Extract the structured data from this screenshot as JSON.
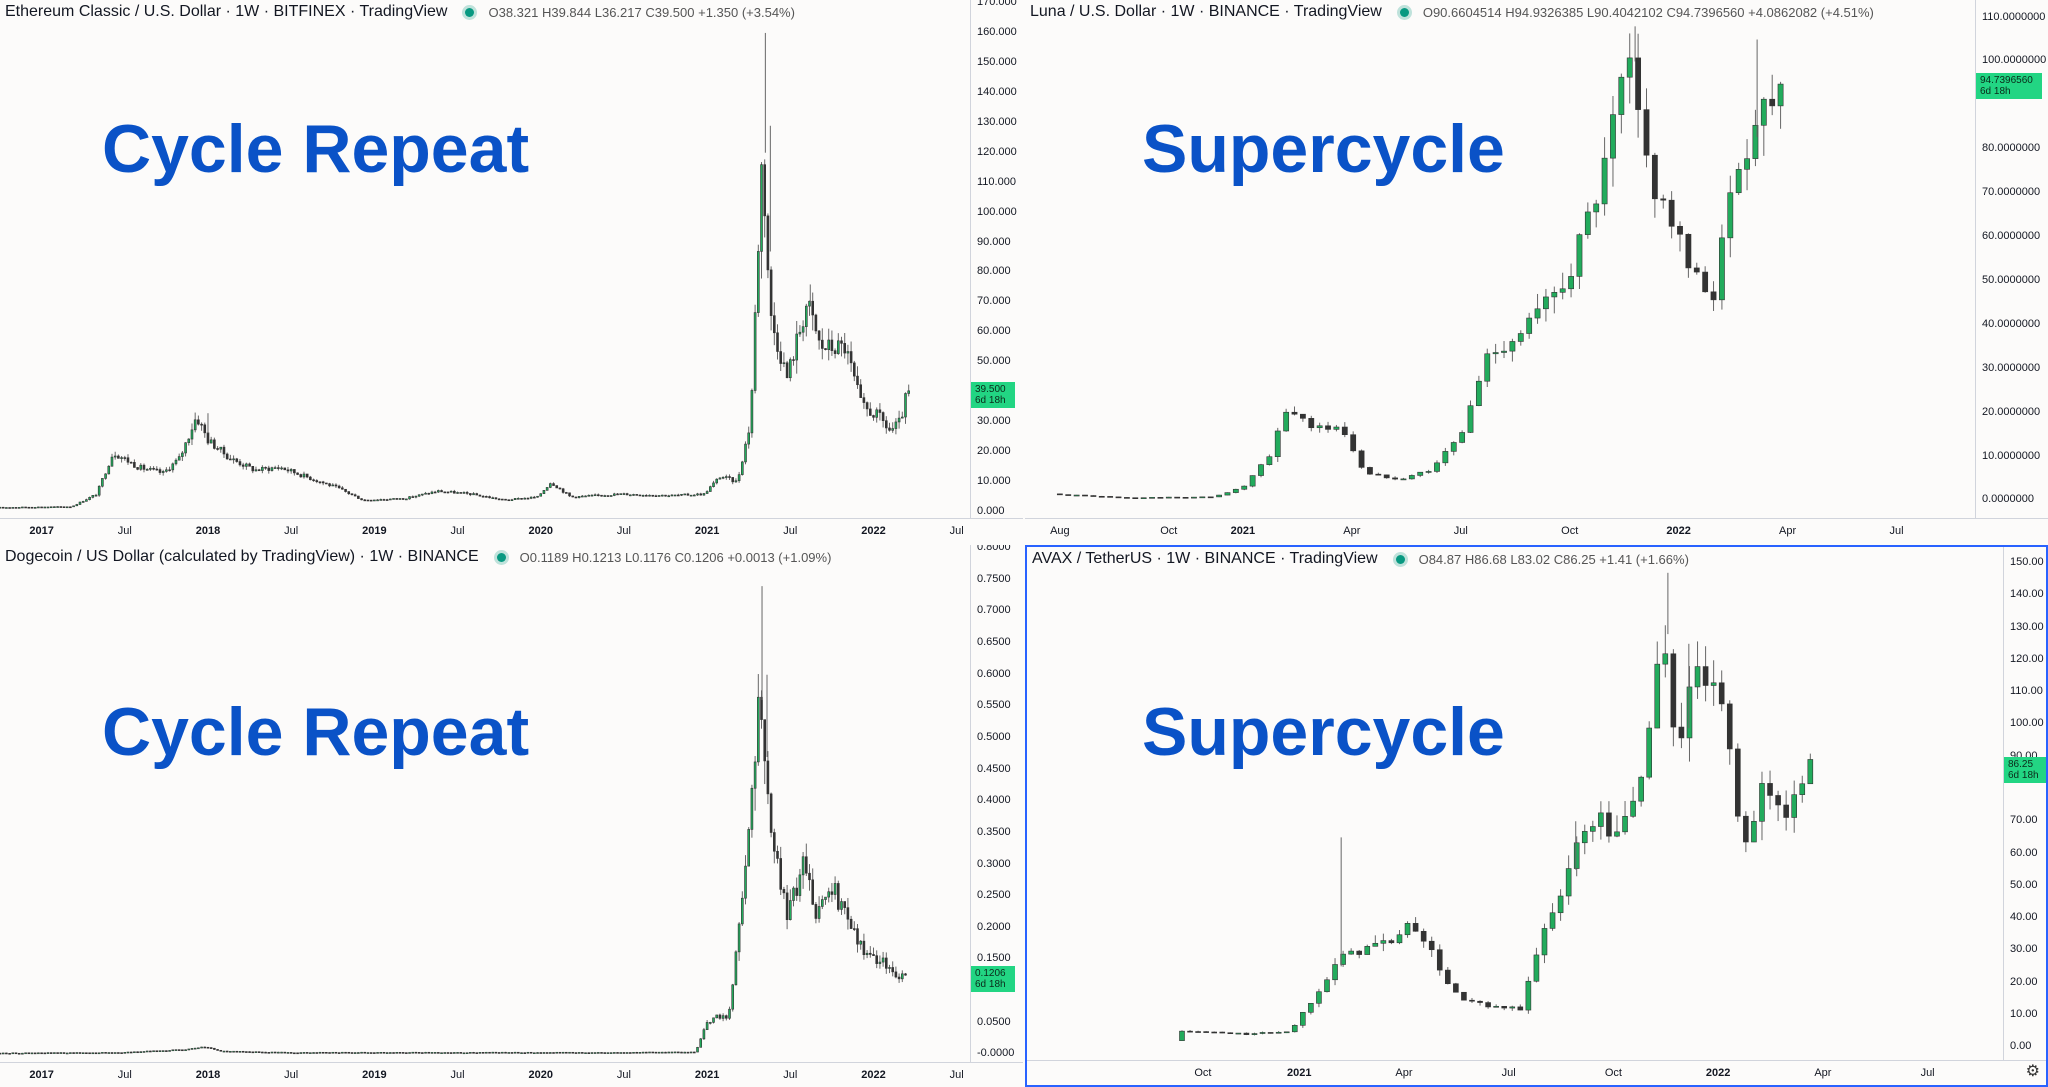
{
  "colors": {
    "up": "#22ab5c",
    "down": "#333333",
    "wick": "#666666",
    "overlay": "#0a52c7",
    "tag": "#22d583"
  },
  "icons": {
    "settings": "gear-icon"
  },
  "chart_data": [
    {
      "type": "candlestick",
      "pane": "top-left",
      "title": "Ethereum Classic / U.S. Dollar · 1W · BITFINEX · TradingView",
      "ohlc_text": "O38.321  H39.844  L36.217  C39.500  +1.350 (+3.54%)",
      "overlay_text": "Cycle Repeat",
      "price_tag": {
        "value": "39.500",
        "countdown": "6d 18h"
      },
      "last_price": 39.5,
      "ylim": [
        -2,
        171
      ],
      "xlim": [
        2016.75,
        2022.58
      ],
      "yticks": [
        0,
        10,
        20,
        30,
        40,
        50,
        60,
        70,
        80,
        90,
        100,
        110,
        120,
        130,
        140,
        150,
        160,
        170
      ],
      "ytick_labels": [
        "0.000",
        "10.000",
        "20.000",
        "30.000",
        "",
        "50.000",
        "60.000",
        "70.000",
        "80.000",
        "90.000",
        "100.000",
        "110.000",
        "120.000",
        "130.000",
        "140.000",
        "150.000",
        "160.000",
        "170.000"
      ],
      "xticks": [
        {
          "x": 2017.0,
          "label": "2017",
          "year": true
        },
        {
          "x": 2017.5,
          "label": "Jul"
        },
        {
          "x": 2018.0,
          "label": "2018",
          "year": true
        },
        {
          "x": 2018.5,
          "label": "Jul"
        },
        {
          "x": 2019.0,
          "label": "2019",
          "year": true
        },
        {
          "x": 2019.5,
          "label": "Jul"
        },
        {
          "x": 2020.0,
          "label": "2020",
          "year": true
        },
        {
          "x": 2020.5,
          "label": "Jul"
        },
        {
          "x": 2021.0,
          "label": "2021",
          "year": true
        },
        {
          "x": 2021.5,
          "label": "Jul"
        },
        {
          "x": 2022.0,
          "label": "2022",
          "year": true
        },
        {
          "x": 2022.5,
          "label": "Jul"
        }
      ],
      "keypoints": [
        [
          2016.75,
          1.5
        ],
        [
          2017.2,
          1.8
        ],
        [
          2017.35,
          6
        ],
        [
          2017.45,
          20
        ],
        [
          2017.6,
          15
        ],
        [
          2017.75,
          13
        ],
        [
          2017.85,
          18
        ],
        [
          2017.95,
          32
        ],
        [
          2018.02,
          24
        ],
        [
          2018.15,
          18
        ],
        [
          2018.3,
          14
        ],
        [
          2018.45,
          15
        ],
        [
          2018.6,
          12
        ],
        [
          2018.8,
          8
        ],
        [
          2018.95,
          4
        ],
        [
          2019.2,
          4.5
        ],
        [
          2019.4,
          7
        ],
        [
          2019.6,
          6
        ],
        [
          2019.8,
          4
        ],
        [
          2020.0,
          5
        ],
        [
          2020.08,
          10
        ],
        [
          2020.2,
          5
        ],
        [
          2020.5,
          6
        ],
        [
          2020.8,
          5.5
        ],
        [
          2021.0,
          6
        ],
        [
          2021.1,
          12
        ],
        [
          2021.2,
          10
        ],
        [
          2021.28,
          30
        ],
        [
          2021.35,
          120
        ],
        [
          2021.4,
          65
        ],
        [
          2021.5,
          45
        ],
        [
          2021.62,
          70
        ],
        [
          2021.7,
          55
        ],
        [
          2021.85,
          55
        ],
        [
          2021.95,
          35
        ],
        [
          2022.05,
          32
        ],
        [
          2022.12,
          27
        ],
        [
          2022.18,
          30
        ],
        [
          2022.22,
          39.5
        ]
      ],
      "spikes": [
        [
          2021.35,
          160
        ],
        [
          2021.38,
          129
        ],
        [
          2021.62,
          76
        ],
        [
          2018.0,
          33
        ]
      ]
    },
    {
      "type": "candlestick",
      "pane": "top-right",
      "title": "Luna / U.S. Dollar · 1W · BINANCE · TradingView",
      "ohlc_text": "O90.6604514  H94.9326385  L90.4042102  C94.7396560  +4.0862082 (+4.51%)",
      "overlay_text": "Supercycle",
      "price_tag": {
        "value": "94.7396560",
        "countdown": "6d 18h"
      },
      "last_price": 94.74,
      "ylim": [
        -4,
        114
      ],
      "xlim": [
        2020.5,
        2022.68
      ],
      "yticks": [
        0,
        10,
        20,
        30,
        40,
        50,
        60,
        70,
        80,
        90,
        100,
        110
      ],
      "ytick_labels": [
        "0.0000000",
        "10.0000000",
        "20.0000000",
        "30.0000000",
        "40.0000000",
        "50.0000000",
        "60.0000000",
        "70.0000000",
        "80.0000000",
        "",
        "100.0000000",
        "110.0000000"
      ],
      "xticks": [
        {
          "x": 2020.58,
          "label": "Aug"
        },
        {
          "x": 2020.83,
          "label": "Oct"
        },
        {
          "x": 2021.0,
          "label": "2021",
          "year": true
        },
        {
          "x": 2021.25,
          "label": "Apr"
        },
        {
          "x": 2021.5,
          "label": "Jul"
        },
        {
          "x": 2021.75,
          "label": "Oct"
        },
        {
          "x": 2022.0,
          "label": "2022",
          "year": true
        },
        {
          "x": 2022.25,
          "label": "Apr"
        },
        {
          "x": 2022.5,
          "label": "Jul"
        }
      ],
      "keypoints": [
        [
          2020.58,
          1.5
        ],
        [
          2020.75,
          0.6
        ],
        [
          2020.95,
          0.8
        ],
        [
          2021.02,
          3
        ],
        [
          2021.08,
          10
        ],
        [
          2021.12,
          21
        ],
        [
          2021.18,
          17
        ],
        [
          2021.25,
          16
        ],
        [
          2021.3,
          6
        ],
        [
          2021.38,
          5
        ],
        [
          2021.45,
          7
        ],
        [
          2021.52,
          15
        ],
        [
          2021.58,
          33
        ],
        [
          2021.65,
          38
        ],
        [
          2021.72,
          45
        ],
        [
          2021.78,
          55
        ],
        [
          2021.85,
          75
        ],
        [
          2021.9,
          100
        ],
        [
          2021.95,
          75
        ],
        [
          2022.0,
          65
        ],
        [
          2022.05,
          50
        ],
        [
          2022.1,
          48
        ],
        [
          2022.15,
          75
        ],
        [
          2022.2,
          88
        ],
        [
          2022.24,
          94.74
        ]
      ],
      "spikes": [
        [
          2021.9,
          108
        ],
        [
          2022.18,
          105
        ]
      ]
    },
    {
      "type": "candlestick",
      "pane": "bottom-left",
      "title": "Dogecoin / US Dollar (calculated by TradingView) · 1W · BINANCE",
      "ohlc_text": "O0.1189  H0.1213  L0.1176  C0.1206  +0.0013 (+1.09%)",
      "overlay_text": "Cycle Repeat",
      "price_tag": {
        "value": "0.1206",
        "countdown": "6d 18h"
      },
      "last_price": 0.1206,
      "ylim": [
        -0.012,
        0.805
      ],
      "xlim": [
        2016.75,
        2022.58
      ],
      "yticks": [
        0,
        0.05,
        0.1,
        0.15,
        0.2,
        0.25,
        0.3,
        0.35,
        0.4,
        0.45,
        0.5,
        0.55,
        0.6,
        0.65,
        0.7,
        0.75,
        0.8
      ],
      "ytick_labels": [
        "-0.0000",
        "0.0500",
        "",
        "0.1500",
        "0.2000",
        "0.2500",
        "0.3000",
        "0.3500",
        "0.4000",
        "0.4500",
        "0.5000",
        "0.5500",
        "0.6000",
        "0.6500",
        "0.7000",
        "0.7500",
        "0.8000"
      ],
      "xticks": [
        {
          "x": 2017.0,
          "label": "2017",
          "year": true
        },
        {
          "x": 2017.5,
          "label": "Jul"
        },
        {
          "x": 2018.0,
          "label": "2018",
          "year": true
        },
        {
          "x": 2018.5,
          "label": "Jul"
        },
        {
          "x": 2019.0,
          "label": "2019",
          "year": true
        },
        {
          "x": 2019.5,
          "label": "Jul"
        },
        {
          "x": 2020.0,
          "label": "2020",
          "year": true
        },
        {
          "x": 2020.5,
          "label": "Jul"
        },
        {
          "x": 2021.0,
          "label": "2021",
          "year": true
        },
        {
          "x": 2021.5,
          "label": "Jul"
        },
        {
          "x": 2022.0,
          "label": "2022",
          "year": true
        },
        {
          "x": 2022.5,
          "label": "Jul"
        }
      ],
      "keypoints": [
        [
          2016.75,
          0.002
        ],
        [
          2017.5,
          0.003
        ],
        [
          2017.9,
          0.008
        ],
        [
          2018.0,
          0.012
        ],
        [
          2018.1,
          0.005
        ],
        [
          2018.5,
          0.003
        ],
        [
          2019.5,
          0.003
        ],
        [
          2020.5,
          0.003
        ],
        [
          2020.95,
          0.004
        ],
        [
          2021.02,
          0.05
        ],
        [
          2021.08,
          0.06
        ],
        [
          2021.15,
          0.06
        ],
        [
          2021.25,
          0.3
        ],
        [
          2021.33,
          0.56
        ],
        [
          2021.4,
          0.35
        ],
        [
          2021.5,
          0.22
        ],
        [
          2021.6,
          0.3
        ],
        [
          2021.68,
          0.22
        ],
        [
          2021.78,
          0.26
        ],
        [
          2021.88,
          0.2
        ],
        [
          2021.98,
          0.16
        ],
        [
          2022.1,
          0.14
        ],
        [
          2022.2,
          0.12
        ]
      ],
      "spikes": [
        [
          2021.33,
          0.74
        ],
        [
          2021.36,
          0.6
        ]
      ]
    },
    {
      "type": "candlestick",
      "pane": "bottom-right",
      "title": "AVAX / TetherUS · 1W · BINANCE · TradingView",
      "ohlc_text": "O84.87  H86.68  L83.02  C86.25  +1.41 (+1.66%)",
      "overlay_text": "Supercycle",
      "price_tag": {
        "value": "86.25",
        "countdown": "6d 18h"
      },
      "last_price": 86.25,
      "ylim": [
        -4,
        155
      ],
      "xlim": [
        2020.35,
        2022.68
      ],
      "yticks": [
        0,
        10,
        20,
        30,
        40,
        50,
        60,
        70,
        80,
        90,
        100,
        110,
        120,
        130,
        140,
        150
      ],
      "ytick_labels": [
        "0.00",
        "10.00",
        "20.00",
        "30.00",
        "40.00",
        "50.00",
        "60.00",
        "70.00",
        "",
        "90.00",
        "100.00",
        "110.00",
        "120.00",
        "130.00",
        "140.00",
        "150.00"
      ],
      "xticks": [
        {
          "x": 2020.77,
          "label": "Oct"
        },
        {
          "x": 2021.0,
          "label": "2021",
          "year": true
        },
        {
          "x": 2021.25,
          "label": "Apr"
        },
        {
          "x": 2021.5,
          "label": "Jul"
        },
        {
          "x": 2021.75,
          "label": "Oct"
        },
        {
          "x": 2022.0,
          "label": "2022",
          "year": true
        },
        {
          "x": 2022.25,
          "label": "Apr"
        },
        {
          "x": 2022.5,
          "label": "Jul"
        }
      ],
      "keypoints": [
        [
          2020.72,
          2
        ],
        [
          2020.74,
          5
        ],
        [
          2020.9,
          4
        ],
        [
          2021.0,
          5
        ],
        [
          2021.05,
          15
        ],
        [
          2021.1,
          25
        ],
        [
          2021.15,
          30
        ],
        [
          2021.22,
          32
        ],
        [
          2021.3,
          38
        ],
        [
          2021.35,
          25
        ],
        [
          2021.4,
          15
        ],
        [
          2021.48,
          12
        ],
        [
          2021.55,
          12
        ],
        [
          2021.6,
          35
        ],
        [
          2021.66,
          55
        ],
        [
          2021.72,
          72
        ],
        [
          2021.78,
          65
        ],
        [
          2021.84,
          85
        ],
        [
          2021.88,
          128
        ],
        [
          2021.92,
          95
        ],
        [
          2021.98,
          118
        ],
        [
          2022.03,
          100
        ],
        [
          2022.08,
          65
        ],
        [
          2022.13,
          80
        ],
        [
          2022.18,
          72
        ],
        [
          2022.22,
          86.25
        ]
      ],
      "spikes": [
        [
          2021.88,
          147
        ],
        [
          2021.93,
          125
        ],
        [
          2021.66,
          70
        ],
        [
          2021.1,
          65
        ]
      ]
    }
  ]
}
